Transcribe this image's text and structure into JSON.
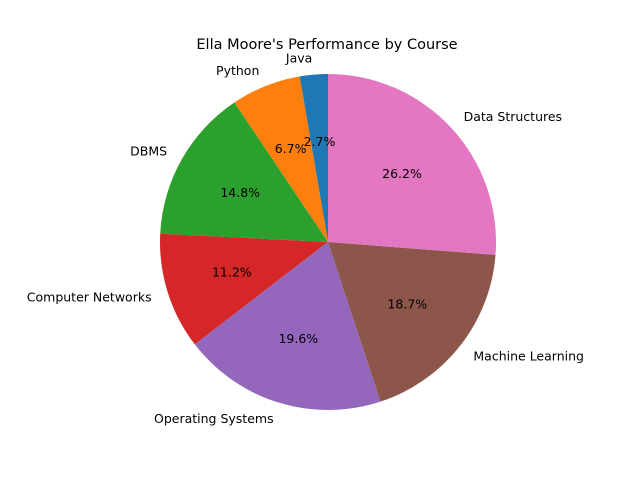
{
  "chart_data": {
    "type": "pie",
    "title": "Ella Moore's Performance by Course",
    "categories": [
      "Java",
      "Python",
      "DBMS",
      "Computer Networks",
      "Operating Systems",
      "Machine Learning",
      "Data Structures"
    ],
    "percent_labels": [
      "2.7%",
      "6.7%",
      "14.8%",
      "11.2%",
      "19.6%",
      "18.7%",
      "26.2%"
    ],
    "values": [
      2.7,
      6.7,
      14.8,
      11.2,
      19.6,
      18.7,
      26.2
    ],
    "colors": [
      "#1f77b4",
      "#ff7f0e",
      "#2ca02c",
      "#d62728",
      "#9467bd",
      "#8c564b",
      "#e377c2"
    ],
    "start_angle_deg": 90,
    "direction": "counterclockwise",
    "legend": "none"
  }
}
